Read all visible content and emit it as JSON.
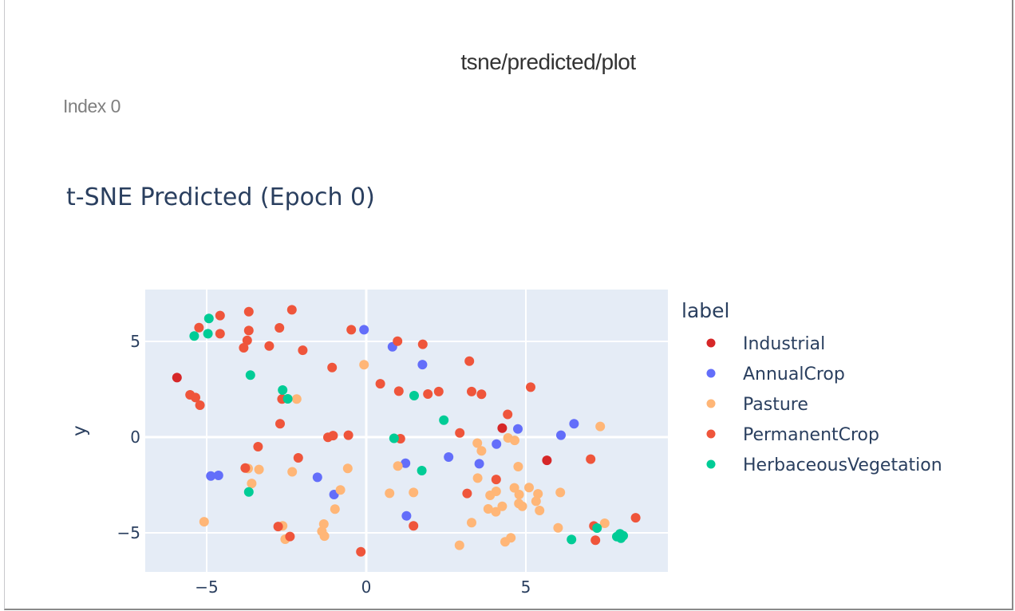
{
  "card": {
    "title": "tsne/predicted/plot",
    "run_label": "Index 0"
  },
  "chart_data": {
    "type": "scatter",
    "title": "t-SNE Predicted (Epoch 0)",
    "xlabel": "",
    "ylabel": "y",
    "xlim": [
      -6.925,
      9.45
    ],
    "ylim": [
      -7.04,
      7.71
    ],
    "xticks": [
      -5,
      0,
      5
    ],
    "yticks": [
      -5,
      0,
      5
    ],
    "xtick_labels": [
      "−5",
      "0",
      "5"
    ],
    "ytick_labels": [
      "−5",
      "0",
      "5"
    ],
    "grid": true,
    "plot_bg": "#e5ecf6",
    "legend": {
      "title": "label",
      "position": "right"
    },
    "series": [
      {
        "name": "Industrial",
        "color": "#d62728",
        "points": [
          [
            -5.93,
            3.11
          ],
          [
            4.26,
            0.47
          ],
          [
            5.66,
            -1.21
          ]
        ]
      },
      {
        "name": "AnnualCrop",
        "color": "#636efa",
        "points": [
          [
            -0.07,
            5.61
          ],
          [
            0.82,
            4.72
          ],
          [
            1.76,
            3.79
          ],
          [
            4.75,
            0.43
          ],
          [
            6.51,
            0.7
          ],
          [
            6.1,
            0.1
          ],
          [
            4.08,
            -0.36
          ],
          [
            2.58,
            -1.04
          ],
          [
            1.23,
            -1.36
          ],
          [
            3.54,
            -1.39
          ],
          [
            -4.87,
            -2.03
          ],
          [
            -4.63,
            -2.0
          ],
          [
            -1.53,
            -2.1
          ],
          [
            -1.01,
            -3.0
          ],
          [
            1.26,
            -4.11
          ]
        ]
      },
      {
        "name": "Pasture",
        "color": "#fecb52",
        "display_color": "#ffb677",
        "points": [
          [
            -0.07,
            3.78
          ],
          [
            -2.18,
            1.99
          ],
          [
            7.33,
            0.56
          ],
          [
            4.44,
            -0.04
          ],
          [
            4.65,
            -0.17
          ],
          [
            3.48,
            -0.31
          ],
          [
            3.61,
            -0.72
          ],
          [
            -3.7,
            -1.64
          ],
          [
            -3.36,
            -1.69
          ],
          [
            -2.32,
            -1.81
          ],
          [
            -0.58,
            -1.63
          ],
          [
            0.99,
            -1.51
          ],
          [
            4.76,
            -1.54
          ],
          [
            -3.59,
            -2.42
          ],
          [
            -0.81,
            -2.76
          ],
          [
            3.49,
            -2.14
          ],
          [
            5.1,
            -2.63
          ],
          [
            4.64,
            -2.65
          ],
          [
            0.73,
            -2.93
          ],
          [
            1.48,
            -2.89
          ],
          [
            4.07,
            -2.83
          ],
          [
            3.88,
            -3.04
          ],
          [
            4.79,
            -3.0
          ],
          [
            5.38,
            -2.96
          ],
          [
            6.08,
            -2.89
          ],
          [
            5.32,
            -3.35
          ],
          [
            4.78,
            -3.47
          ],
          [
            4.89,
            -3.61
          ],
          [
            -0.98,
            -3.76
          ],
          [
            4.26,
            -3.61
          ],
          [
            3.82,
            -3.75
          ],
          [
            4.06,
            -3.9
          ],
          [
            5.43,
            -3.83
          ],
          [
            -5.08,
            -4.42
          ],
          [
            -2.62,
            -4.63
          ],
          [
            -1.33,
            -4.54
          ],
          [
            -1.39,
            -4.92
          ],
          [
            -1.31,
            -5.17
          ],
          [
            -2.54,
            -5.33
          ],
          [
            3.3,
            -4.47
          ],
          [
            6.01,
            -4.74
          ],
          [
            7.47,
            -4.5
          ],
          [
            4.53,
            -5.26
          ],
          [
            4.35,
            -5.47
          ],
          [
            2.92,
            -5.65
          ]
        ]
      },
      {
        "name": "PermanentCrop",
        "color": "#ef553b",
        "points": [
          [
            -4.58,
            6.35
          ],
          [
            -5.24,
            5.72
          ],
          [
            -4.58,
            5.4
          ],
          [
            -3.68,
            6.55
          ],
          [
            -2.33,
            6.65
          ],
          [
            -3.68,
            5.57
          ],
          [
            -2.72,
            5.71
          ],
          [
            -3.73,
            5.05
          ],
          [
            -3.84,
            4.67
          ],
          [
            -3.04,
            4.76
          ],
          [
            -1.99,
            4.54
          ],
          [
            -5.52,
            2.21
          ],
          [
            -5.35,
            2.07
          ],
          [
            -5.21,
            1.67
          ],
          [
            -2.64,
            1.99
          ],
          [
            -2.7,
            0.7
          ],
          [
            -0.47,
            5.61
          ],
          [
            0.98,
            5.01
          ],
          [
            1.77,
            4.85
          ],
          [
            -1.07,
            3.64
          ],
          [
            0.44,
            2.79
          ],
          [
            1.02,
            2.4
          ],
          [
            1.93,
            2.25
          ],
          [
            2.27,
            2.38
          ],
          [
            -1.2,
            -0.01
          ],
          [
            -1.04,
            0.08
          ],
          [
            -0.56,
            0.1
          ],
          [
            1.07,
            -0.08
          ],
          [
            3.23,
            3.97
          ],
          [
            3.3,
            2.38
          ],
          [
            3.61,
            2.24
          ],
          [
            5.15,
            2.61
          ],
          [
            4.43,
            1.19
          ],
          [
            2.93,
            0.22
          ],
          [
            -3.39,
            -0.5
          ],
          [
            -2.13,
            -1.08
          ],
          [
            -3.79,
            -1.61
          ],
          [
            4.07,
            -2.21
          ],
          [
            3.16,
            -2.94
          ],
          [
            1.48,
            -4.63
          ],
          [
            -2.76,
            -4.67
          ],
          [
            -2.39,
            -5.19
          ],
          [
            -0.17,
            -5.99
          ],
          [
            7.03,
            -1.15
          ],
          [
            8.44,
            -4.21
          ],
          [
            7.13,
            -4.64
          ],
          [
            7.18,
            -5.38
          ]
        ]
      },
      {
        "name": "HerbaceousVegetation",
        "color": "#00cc96",
        "points": [
          [
            -4.93,
            6.2
          ],
          [
            -5.39,
            5.28
          ],
          [
            -4.96,
            5.4
          ],
          [
            -3.63,
            3.24
          ],
          [
            -2.62,
            2.46
          ],
          [
            -2.46,
            2.0
          ],
          [
            1.5,
            2.17
          ],
          [
            2.43,
            0.89
          ],
          [
            0.87,
            -0.06
          ],
          [
            1.74,
            -1.75
          ],
          [
            -3.68,
            -2.86
          ],
          [
            7.23,
            -4.75
          ],
          [
            6.43,
            -5.35
          ],
          [
            7.85,
            -5.2
          ],
          [
            7.95,
            -5.05
          ],
          [
            8.05,
            -5.15
          ],
          [
            7.98,
            -5.28
          ]
        ]
      }
    ]
  }
}
